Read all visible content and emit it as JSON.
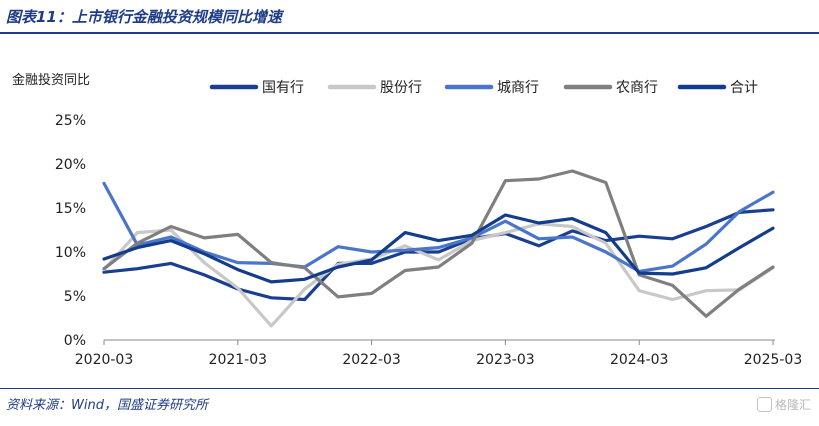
{
  "header": {
    "title": "图表11：上市银行金融投资规模同比增速"
  },
  "footer": {
    "source": "资料来源：Wind，国盛证券研究所",
    "watermark": "格隆汇"
  },
  "chart_data": {
    "type": "line",
    "title": "",
    "ylabel": "金融投资同比",
    "xlabel": "",
    "ylim": [
      0,
      25
    ],
    "yticks": [
      "0%",
      "5%",
      "10%",
      "15%",
      "20%",
      "25%"
    ],
    "ytick_values": [
      0,
      5,
      10,
      15,
      20,
      25
    ],
    "x": [
      "2020-03",
      "2020-06",
      "2020-09",
      "2020-12",
      "2021-03",
      "2021-06",
      "2021-09",
      "2021-12",
      "2022-03",
      "2022-06",
      "2022-09",
      "2022-12",
      "2023-03",
      "2023-06",
      "2023-09",
      "2023-12",
      "2024-03",
      "2024-06",
      "2024-09",
      "2024-12",
      "2025-03"
    ],
    "x_ticks": [
      "2020-03",
      "2021-03",
      "2022-03",
      "2023-03",
      "2024-03",
      "2025-03"
    ],
    "legend_position": "top",
    "grid": false,
    "series": [
      {
        "name": "国有行",
        "color": "#1a3f8f",
        "values": [
          7.7,
          8.1,
          8.7,
          7.4,
          5.8,
          4.8,
          4.6,
          8.7,
          8.7,
          10.0,
          10.0,
          11.5,
          12.1,
          10.7,
          12.4,
          11.3,
          11.8,
          11.5,
          12.9,
          14.5,
          14.8
        ]
      },
      {
        "name": "股份行",
        "color": "#c8c8c8",
        "values": [
          8.0,
          12.2,
          12.5,
          8.8,
          5.9,
          1.6,
          5.8,
          8.6,
          9.2,
          10.7,
          9.1,
          11.3,
          12.2,
          13.2,
          12.9,
          11.0,
          5.6,
          4.6,
          5.6,
          5.7,
          8.2
        ]
      },
      {
        "name": "城商行",
        "color": "#4a75c9",
        "values": [
          17.8,
          10.8,
          11.7,
          10.0,
          8.8,
          8.7,
          8.3,
          10.6,
          10.0,
          10.2,
          10.5,
          11.6,
          13.5,
          11.5,
          11.7,
          10.0,
          7.8,
          8.4,
          10.9,
          14.6,
          16.8
        ]
      },
      {
        "name": "农商行",
        "color": "#7f7f7f",
        "values": [
          8.1,
          11.0,
          12.9,
          11.6,
          12.0,
          8.8,
          8.2,
          4.9,
          5.3,
          7.9,
          8.3,
          11.0,
          18.1,
          18.3,
          19.2,
          17.9,
          7.4,
          6.2,
          2.7,
          5.8,
          8.3
        ]
      },
      {
        "name": "合计",
        "color": "#133c8d",
        "values": [
          9.2,
          10.5,
          11.3,
          9.8,
          8.0,
          6.6,
          6.9,
          8.3,
          9.1,
          12.2,
          11.3,
          11.9,
          14.2,
          13.3,
          13.8,
          12.2,
          7.6,
          7.5,
          8.2,
          10.5,
          12.7
        ]
      }
    ]
  }
}
